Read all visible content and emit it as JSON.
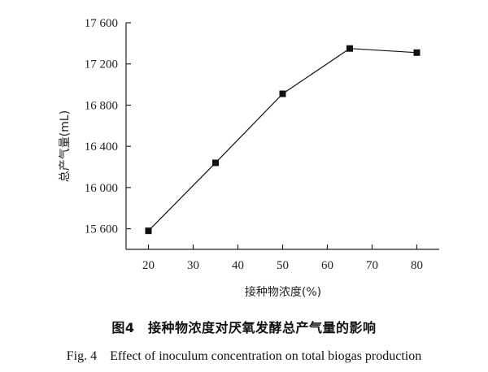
{
  "chart_data": {
    "type": "line",
    "x": [
      20,
      35,
      50,
      65,
      80
    ],
    "series": [
      {
        "values": [
          15580,
          16240,
          16910,
          17350,
          17310
        ],
        "color": "#111111"
      }
    ],
    "xlabel": "接种物浓度(%)",
    "ylabel": "总产气量(mL)",
    "xlim": [
      15,
      85
    ],
    "ylim": [
      15400,
      17600
    ],
    "xticks": [
      20,
      30,
      40,
      50,
      60,
      70,
      80
    ],
    "xtick_labels": [
      "20",
      "30",
      "40",
      "50",
      "60",
      "70",
      "80"
    ],
    "yticks": [
      15600,
      16000,
      16400,
      16800,
      17200,
      17600
    ],
    "ytick_labels": [
      "15 600",
      "16 000",
      "16 400",
      "16 800",
      "17 200",
      "17 600"
    ],
    "grid": false,
    "marker": "square"
  },
  "caption": {
    "cn": "图4　接种物浓度对厌氧发酵总产气量的影响",
    "en": "Fig. 4　Effect of inoculum concentration on total biogas production"
  }
}
